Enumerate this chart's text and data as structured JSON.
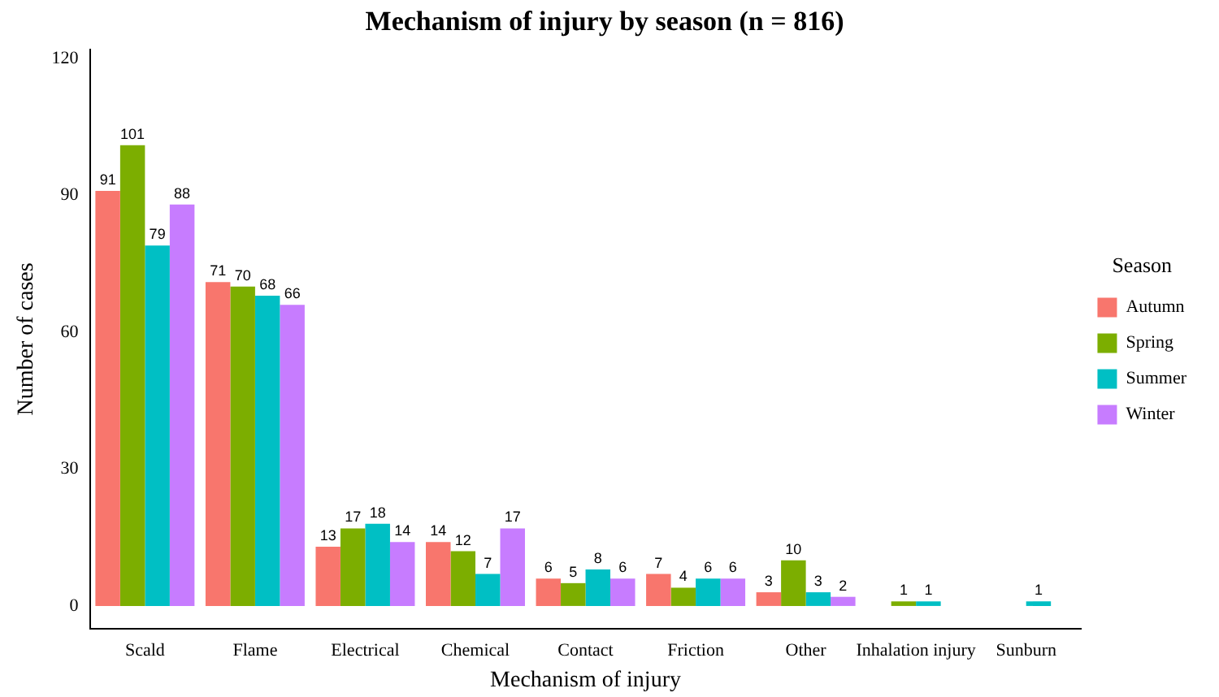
{
  "chart_data": {
    "type": "bar",
    "title": "Mechanism of injury by season (n = 816)",
    "xlabel": "Mechanism of injury",
    "ylabel": "Number of cases",
    "legend_title": "Season",
    "categories": [
      "Scald",
      "Flame",
      "Electrical",
      "Chemical",
      "Contact",
      "Friction",
      "Other",
      "Inhalation injury",
      "Sunburn"
    ],
    "series": [
      {
        "name": "Autumn",
        "color": "#f8766d",
        "values": [
          91,
          71,
          13,
          14,
          6,
          7,
          3,
          null,
          null
        ]
      },
      {
        "name": "Spring",
        "color": "#7cae00",
        "values": [
          101,
          70,
          17,
          12,
          5,
          4,
          10,
          1,
          null
        ]
      },
      {
        "name": "Summer",
        "color": "#00bfc4",
        "values": [
          79,
          68,
          18,
          7,
          8,
          6,
          3,
          1,
          1
        ]
      },
      {
        "name": "Winter",
        "color": "#c77cff",
        "values": [
          88,
          66,
          14,
          17,
          6,
          6,
          2,
          null,
          null
        ]
      }
    ],
    "ylim": [
      -5,
      122
    ],
    "yticks": [
      0,
      30,
      60,
      90,
      120
    ],
    "grid": false,
    "legend": "right",
    "data_labels": true
  }
}
